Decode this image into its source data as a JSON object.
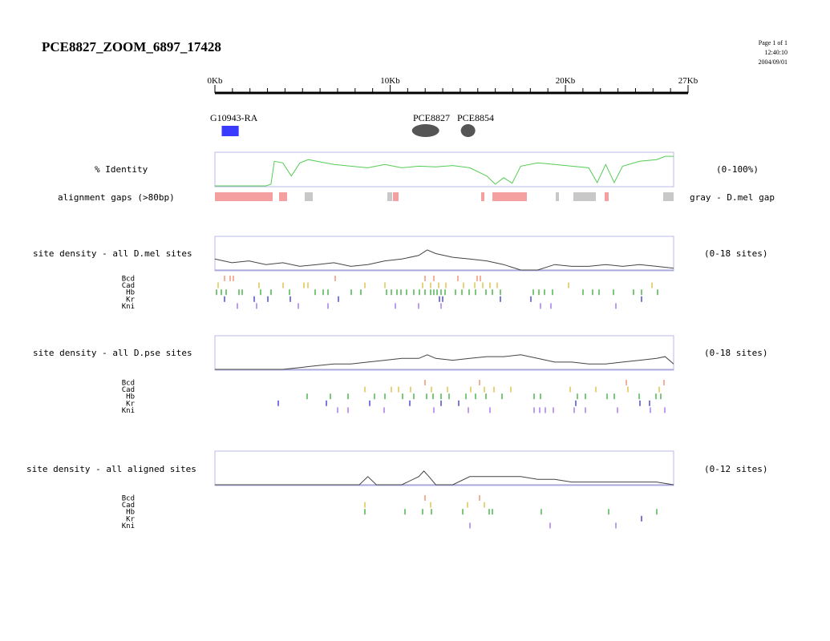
{
  "page": {
    "title": "PCE8827_ZOOM_6897_17428",
    "page_label": "Page 1 of 1",
    "time": "12:40:10",
    "date": "2004/09/01"
  },
  "ruler": {
    "ticks": [
      "0Kb",
      "10Kb",
      "20Kb",
      "27Kb"
    ],
    "max_kb": 27
  },
  "features": {
    "gene": {
      "label": "G10943-RA",
      "color": "#3b3bff",
      "start_kb": 0.4,
      "end_kb": 1.4
    },
    "pce_elements": [
      {
        "label": "PCE8827",
        "center_kb": 12.4
      },
      {
        "label": "PCE8854",
        "center_kb": 14.9
      }
    ]
  },
  "identity": {
    "label": "% Identity",
    "range": "(0-100%)",
    "color": "#55cc55"
  },
  "gaps": {
    "label": "alignment gaps (>80bp)",
    "legend": "gray - D.mel gap",
    "pink": "#f4a0a0",
    "gray": "#c8c8c8"
  },
  "panels": [
    {
      "label": "site density - all D.mel sites",
      "range": "(0-18 sites)",
      "factors": [
        "Bcd",
        "Cad",
        "Hb",
        "Kr",
        "Kni"
      ]
    },
    {
      "label": "site density - all D.pse sites",
      "range": "(0-18 sites)",
      "factors": [
        "Bcd",
        "Cad",
        "Hb",
        "Kr",
        "Kni"
      ]
    },
    {
      "label": "site density - all aligned sites",
      "range": "(0-12 sites)",
      "factors": [
        "Bcd",
        "Cad",
        "Hb",
        "Kr",
        "Kni"
      ]
    }
  ],
  "factor_colors": {
    "Bcd": "#ee8866",
    "Cad": "#ddbb33",
    "Hb": "#33aa33",
    "Kr": "#3333cc",
    "Kni": "#9966ee"
  },
  "chart_data": [
    {
      "type": "line",
      "title": "% Identity",
      "ylabel": "(0-100%)",
      "xlim": [
        0,
        27
      ],
      "ylim": [
        0,
        100
      ],
      "x": [
        0,
        1,
        2,
        3,
        3.3,
        3.5,
        4,
        4.5,
        5,
        5.5,
        6,
        7,
        8,
        9,
        10,
        11,
        12,
        13,
        14,
        15,
        16,
        16.5,
        17,
        17.5,
        18,
        19,
        20,
        21,
        22,
        22.5,
        23,
        23.5,
        24,
        25,
        26,
        26.5,
        27
      ],
      "y": [
        0,
        0,
        0,
        0,
        5,
        75,
        70,
        30,
        70,
        80,
        75,
        65,
        60,
        55,
        65,
        55,
        60,
        58,
        62,
        55,
        30,
        5,
        25,
        8,
        60,
        70,
        65,
        60,
        55,
        10,
        65,
        10,
        60,
        75,
        80,
        90,
        90
      ]
    },
    {
      "type": "line",
      "title": "site density - all D.mel sites",
      "ylabel": "(0-18 sites)",
      "xlim": [
        0,
        27
      ],
      "ylim": [
        0,
        18
      ],
      "x": [
        0,
        1,
        2,
        3,
        4,
        5,
        6,
        7,
        8,
        9,
        10,
        11,
        12,
        12.5,
        13,
        14,
        15,
        16,
        17,
        18,
        19,
        20,
        21,
        22,
        23,
        24,
        25,
        26,
        27
      ],
      "y": [
        6,
        4,
        5,
        3,
        4,
        2,
        3,
        4,
        2,
        3,
        5,
        6,
        8,
        11,
        9,
        7,
        6,
        5,
        3,
        0,
        0,
        3,
        2,
        2,
        3,
        2,
        3,
        2,
        1
      ]
    },
    {
      "type": "line",
      "title": "site density - all D.pse sites",
      "ylabel": "(0-18 sites)",
      "xlim": [
        0,
        27
      ],
      "ylim": [
        0,
        18
      ],
      "x": [
        0,
        2,
        3,
        4,
        5,
        6,
        7,
        8,
        9,
        10,
        11,
        12,
        12.5,
        13,
        14,
        15,
        16,
        17,
        18,
        19,
        20,
        21,
        22,
        23,
        24,
        25,
        26,
        26.5,
        27
      ],
      "y": [
        0,
        0,
        0,
        0,
        1,
        2,
        3,
        3,
        4,
        5,
        6,
        6,
        8,
        6,
        5,
        6,
        7,
        7,
        8,
        6,
        4,
        4,
        3,
        3,
        4,
        5,
        6,
        7,
        3
      ]
    },
    {
      "type": "line",
      "title": "site density - all aligned sites",
      "ylabel": "(0-12 sites)",
      "xlim": [
        0,
        27
      ],
      "ylim": [
        0,
        12
      ],
      "x": [
        0,
        8,
        8.5,
        9,
        9.5,
        11,
        12,
        12.3,
        12.6,
        13,
        14,
        15,
        16,
        17,
        18,
        19,
        20,
        21,
        22,
        23,
        24,
        25,
        26,
        27
      ],
      "y": [
        0,
        0,
        0,
        3,
        0,
        0,
        3,
        5,
        3,
        0,
        0,
        3,
        3,
        3,
        3,
        2,
        2,
        1,
        1,
        1,
        1,
        1,
        1,
        0
      ]
    }
  ]
}
